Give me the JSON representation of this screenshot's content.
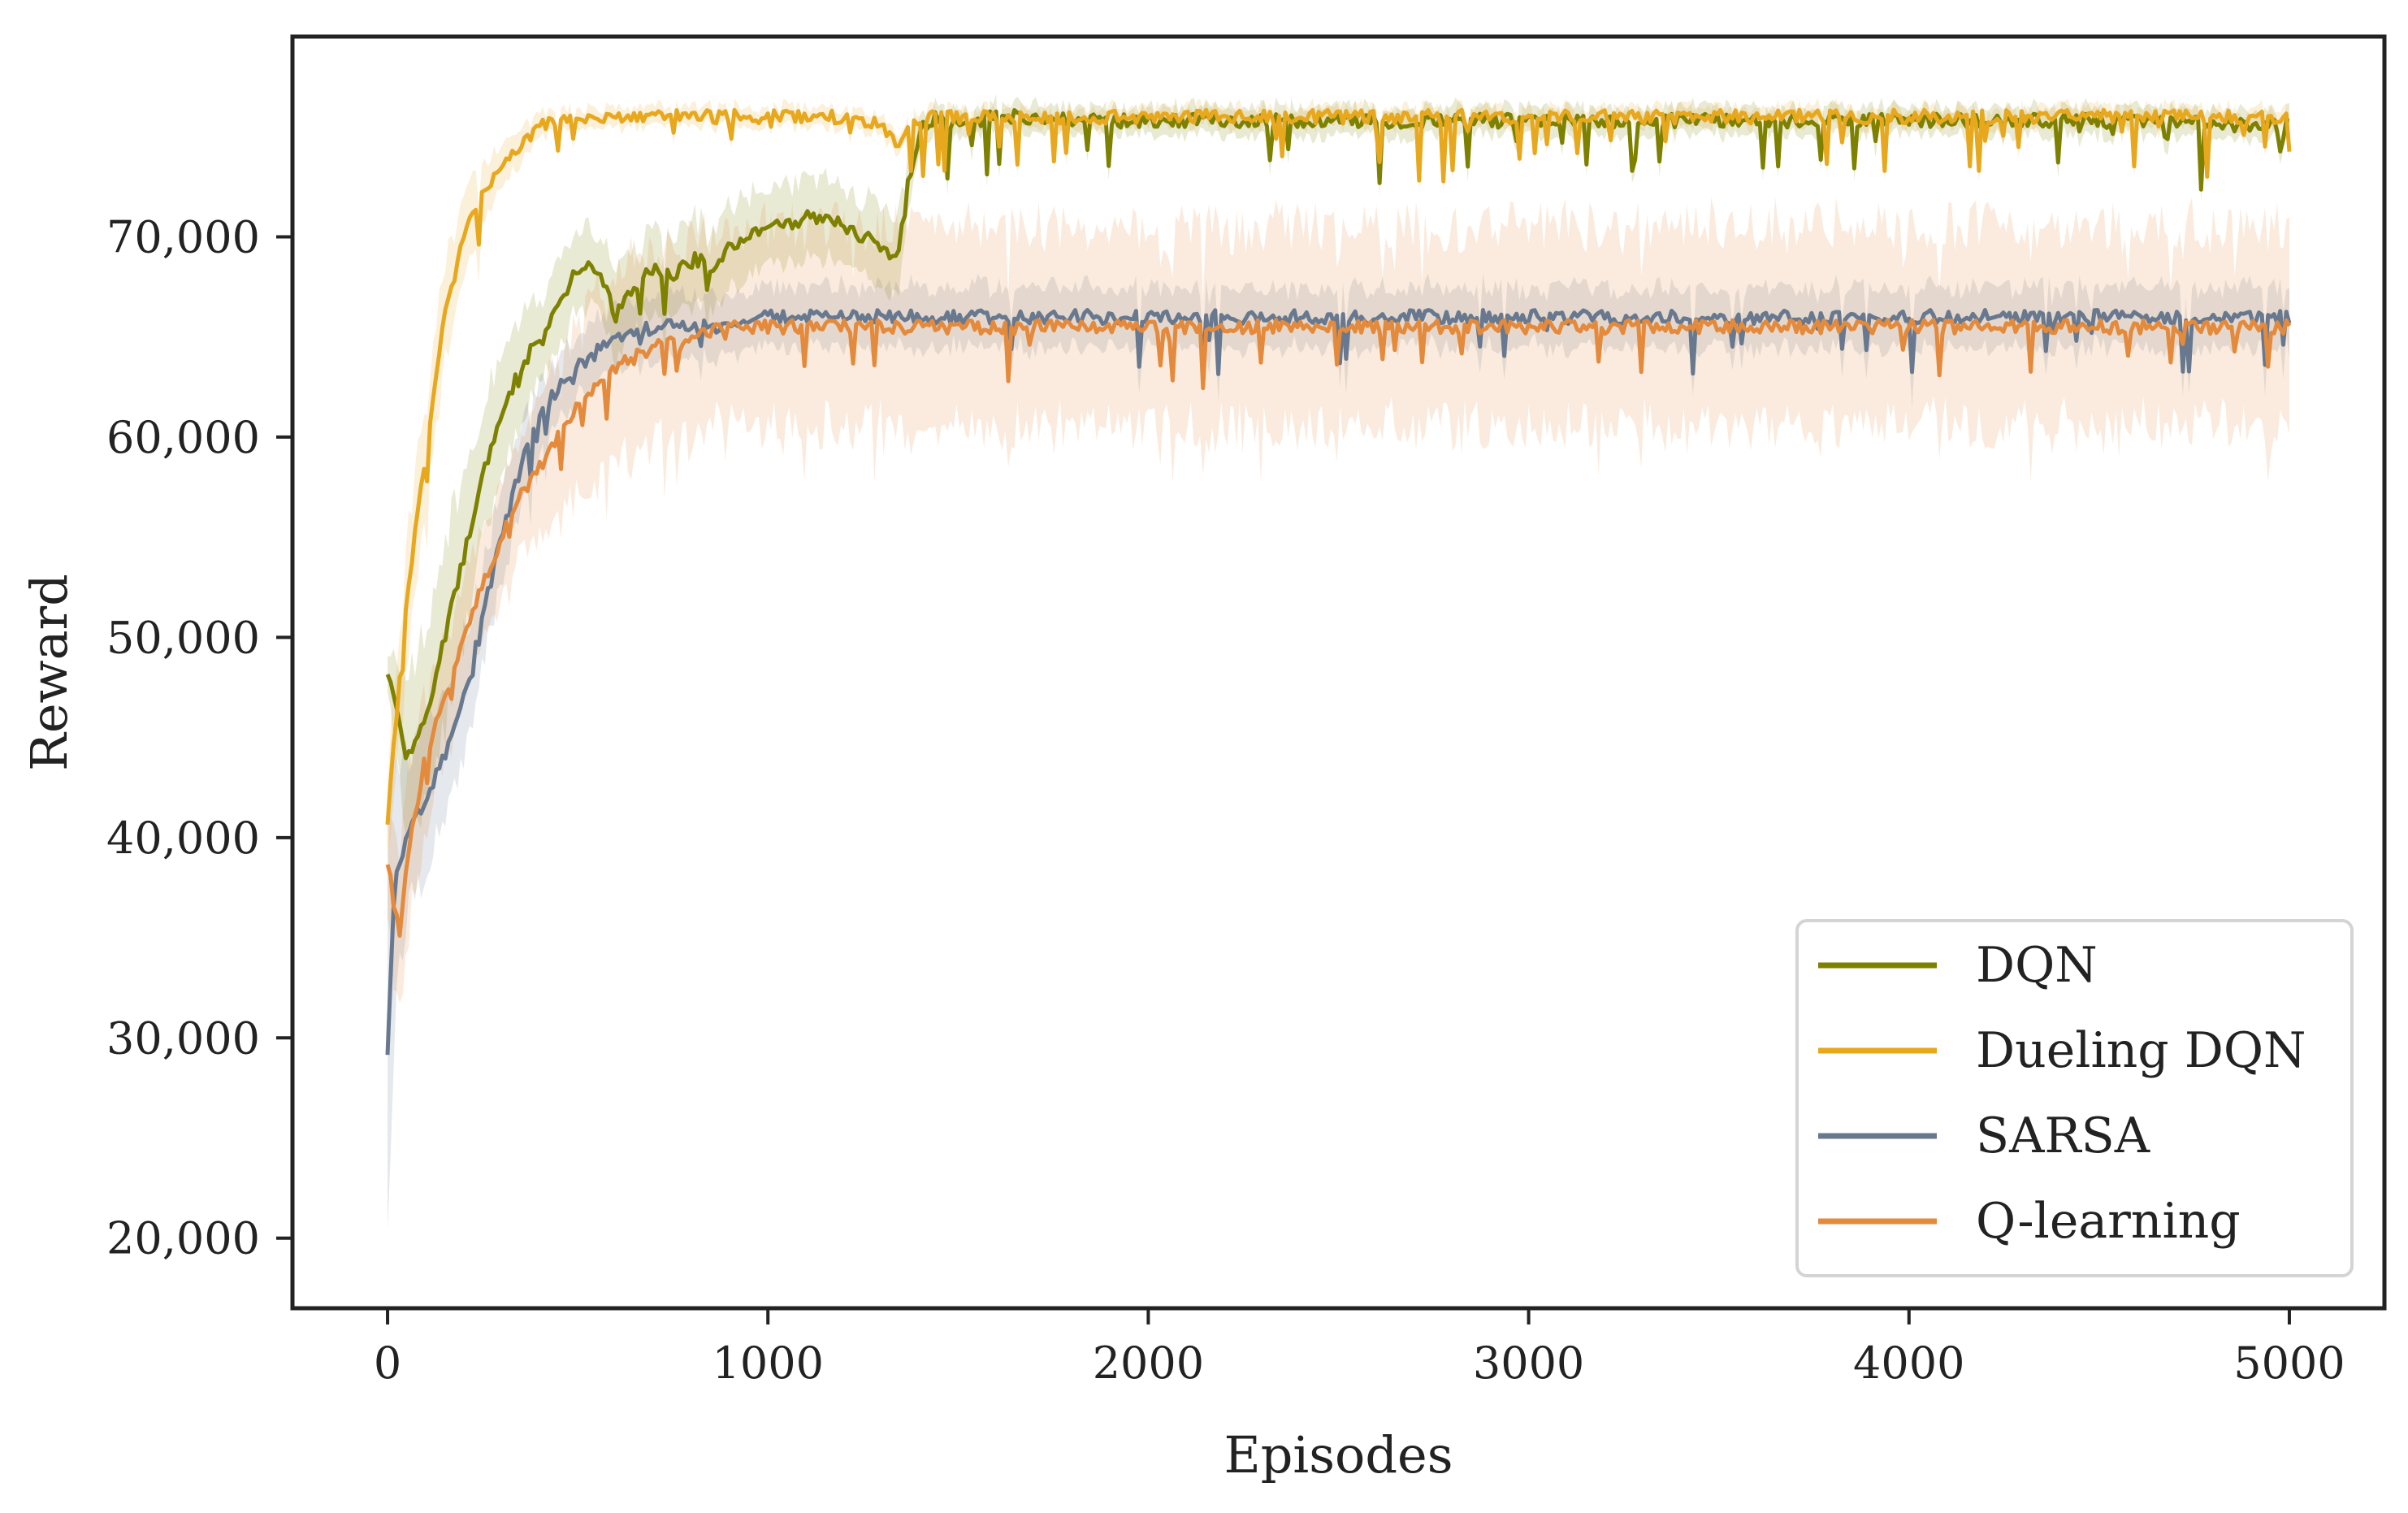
{
  "chart_data": {
    "type": "line",
    "title": "",
    "xlabel": "Episodes",
    "ylabel": "Reward",
    "xlim": [
      -250,
      5250
    ],
    "ylim": [
      16500,
      80000
    ],
    "xticks": [
      0,
      1000,
      2000,
      3000,
      4000,
      5000
    ],
    "xtick_labels": [
      "0",
      "1000",
      "2000",
      "3000",
      "4000",
      "5000"
    ],
    "yticks": [
      20000,
      30000,
      40000,
      50000,
      60000,
      70000
    ],
    "ytick_labels": [
      "20,000",
      "30,000",
      "40,000",
      "50,000",
      "60,000",
      "70,000"
    ],
    "grid": false,
    "legend_position": "lower-right",
    "series": [
      {
        "name": "DQN",
        "color": "#7e8000",
        "x": [
          0,
          50,
          100,
          150,
          200,
          250,
          300,
          350,
          400,
          450,
          500,
          550,
          600,
          650,
          700,
          750,
          800,
          850,
          900,
          950,
          1000,
          1050,
          1100,
          1150,
          1200,
          1250,
          1300,
          1340,
          1360,
          1380,
          1400,
          1450,
          1500,
          1600,
          1700,
          1800,
          2000,
          2500,
          3000,
          3500,
          4000,
          4500,
          5000
        ],
        "y": [
          48500,
          44000,
          46000,
          50000,
          54000,
          58000,
          61000,
          63500,
          65000,
          66500,
          68500,
          68500,
          66000,
          67500,
          68500,
          68000,
          69000,
          68500,
          69500,
          70000,
          70500,
          70500,
          71000,
          71000,
          70500,
          70000,
          69500,
          69000,
          72000,
          73500,
          75500,
          76000,
          75500,
          76000,
          76000,
          75800,
          75800,
          75800,
          75800,
          75800,
          75800,
          75800,
          75500
        ],
        "band": [
          1000,
          4000,
          4500,
          4500,
          4000,
          3500,
          3000,
          2500,
          2200,
          2000,
          2000,
          2000,
          2000,
          2000,
          2000,
          2000,
          2000,
          2000,
          2000,
          2000,
          2000,
          2000,
          2000,
          2000,
          2000,
          2000,
          2000,
          2000,
          1500,
          1000,
          800,
          700,
          700,
          700,
          700,
          700,
          700,
          700,
          700,
          700,
          700,
          700,
          700
        ]
      },
      {
        "name": "Dueling DQN",
        "color": "#e8a81e",
        "x": [
          0,
          50,
          100,
          150,
          200,
          250,
          300,
          350,
          400,
          450,
          500,
          600,
          800,
          1000,
          1200,
          1300,
          1340,
          1400,
          1500,
          2000,
          2500,
          3000,
          3500,
          4000,
          4500,
          5000
        ],
        "y": [
          41000,
          52000,
          59000,
          66000,
          70000,
          72000,
          73500,
          74500,
          75500,
          76000,
          76000,
          76000,
          76000,
          76000,
          76000,
          75500,
          74500,
          76000,
          76000,
          76000,
          76000,
          76000,
          76000,
          76000,
          76000,
          76000
        ],
        "band": [
          2000,
          3000,
          3000,
          2500,
          2000,
          1500,
          1000,
          800,
          600,
          500,
          500,
          500,
          500,
          500,
          500,
          500,
          500,
          500,
          500,
          500,
          500,
          500,
          500,
          500,
          500,
          500
        ]
      },
      {
        "name": "SARSA",
        "color": "#67788f",
        "x": [
          0,
          20,
          50,
          100,
          150,
          200,
          250,
          300,
          350,
          400,
          450,
          500,
          600,
          700,
          800,
          900,
          1000,
          1500,
          2000,
          2500,
          3000,
          3500,
          4000,
          4500,
          5000
        ],
        "y": [
          29500,
          38000,
          40000,
          42000,
          44000,
          47000,
          51000,
          55000,
          58500,
          61000,
          62500,
          63500,
          65000,
          65500,
          65500,
          65500,
          66000,
          66000,
          66000,
          66000,
          66000,
          66000,
          66000,
          66000,
          66000
        ],
        "band": [
          10000,
          6000,
          4000,
          3500,
          3000,
          3000,
          2500,
          2500,
          2000,
          2000,
          1800,
          1500,
          1500,
          1500,
          1500,
          1500,
          1500,
          1500,
          1500,
          1500,
          1500,
          1500,
          1500,
          1500,
          1500
        ]
      },
      {
        "name": "Q-learning",
        "color": "#e48a3c",
        "x": [
          0,
          30,
          60,
          100,
          150,
          200,
          250,
          300,
          350,
          400,
          450,
          500,
          600,
          700,
          800,
          900,
          1000,
          1500,
          2000,
          2500,
          3000,
          3500,
          4000,
          4500,
          5000
        ],
        "y": [
          39000,
          35000,
          40000,
          44000,
          47000,
          50000,
          52500,
          55000,
          57000,
          58500,
          60000,
          61500,
          63500,
          64500,
          65000,
          65500,
          65500,
          65500,
          65500,
          65500,
          65500,
          65500,
          65500,
          65500,
          65500
        ],
        "band": [
          3000,
          4000,
          4000,
          3500,
          3000,
          3000,
          3000,
          3000,
          3000,
          3500,
          4000,
          4500,
          5000,
          5000,
          5000,
          5000,
          5000,
          5000,
          5000,
          5000,
          5000,
          5000,
          5000,
          5000,
          5000
        ]
      }
    ]
  }
}
